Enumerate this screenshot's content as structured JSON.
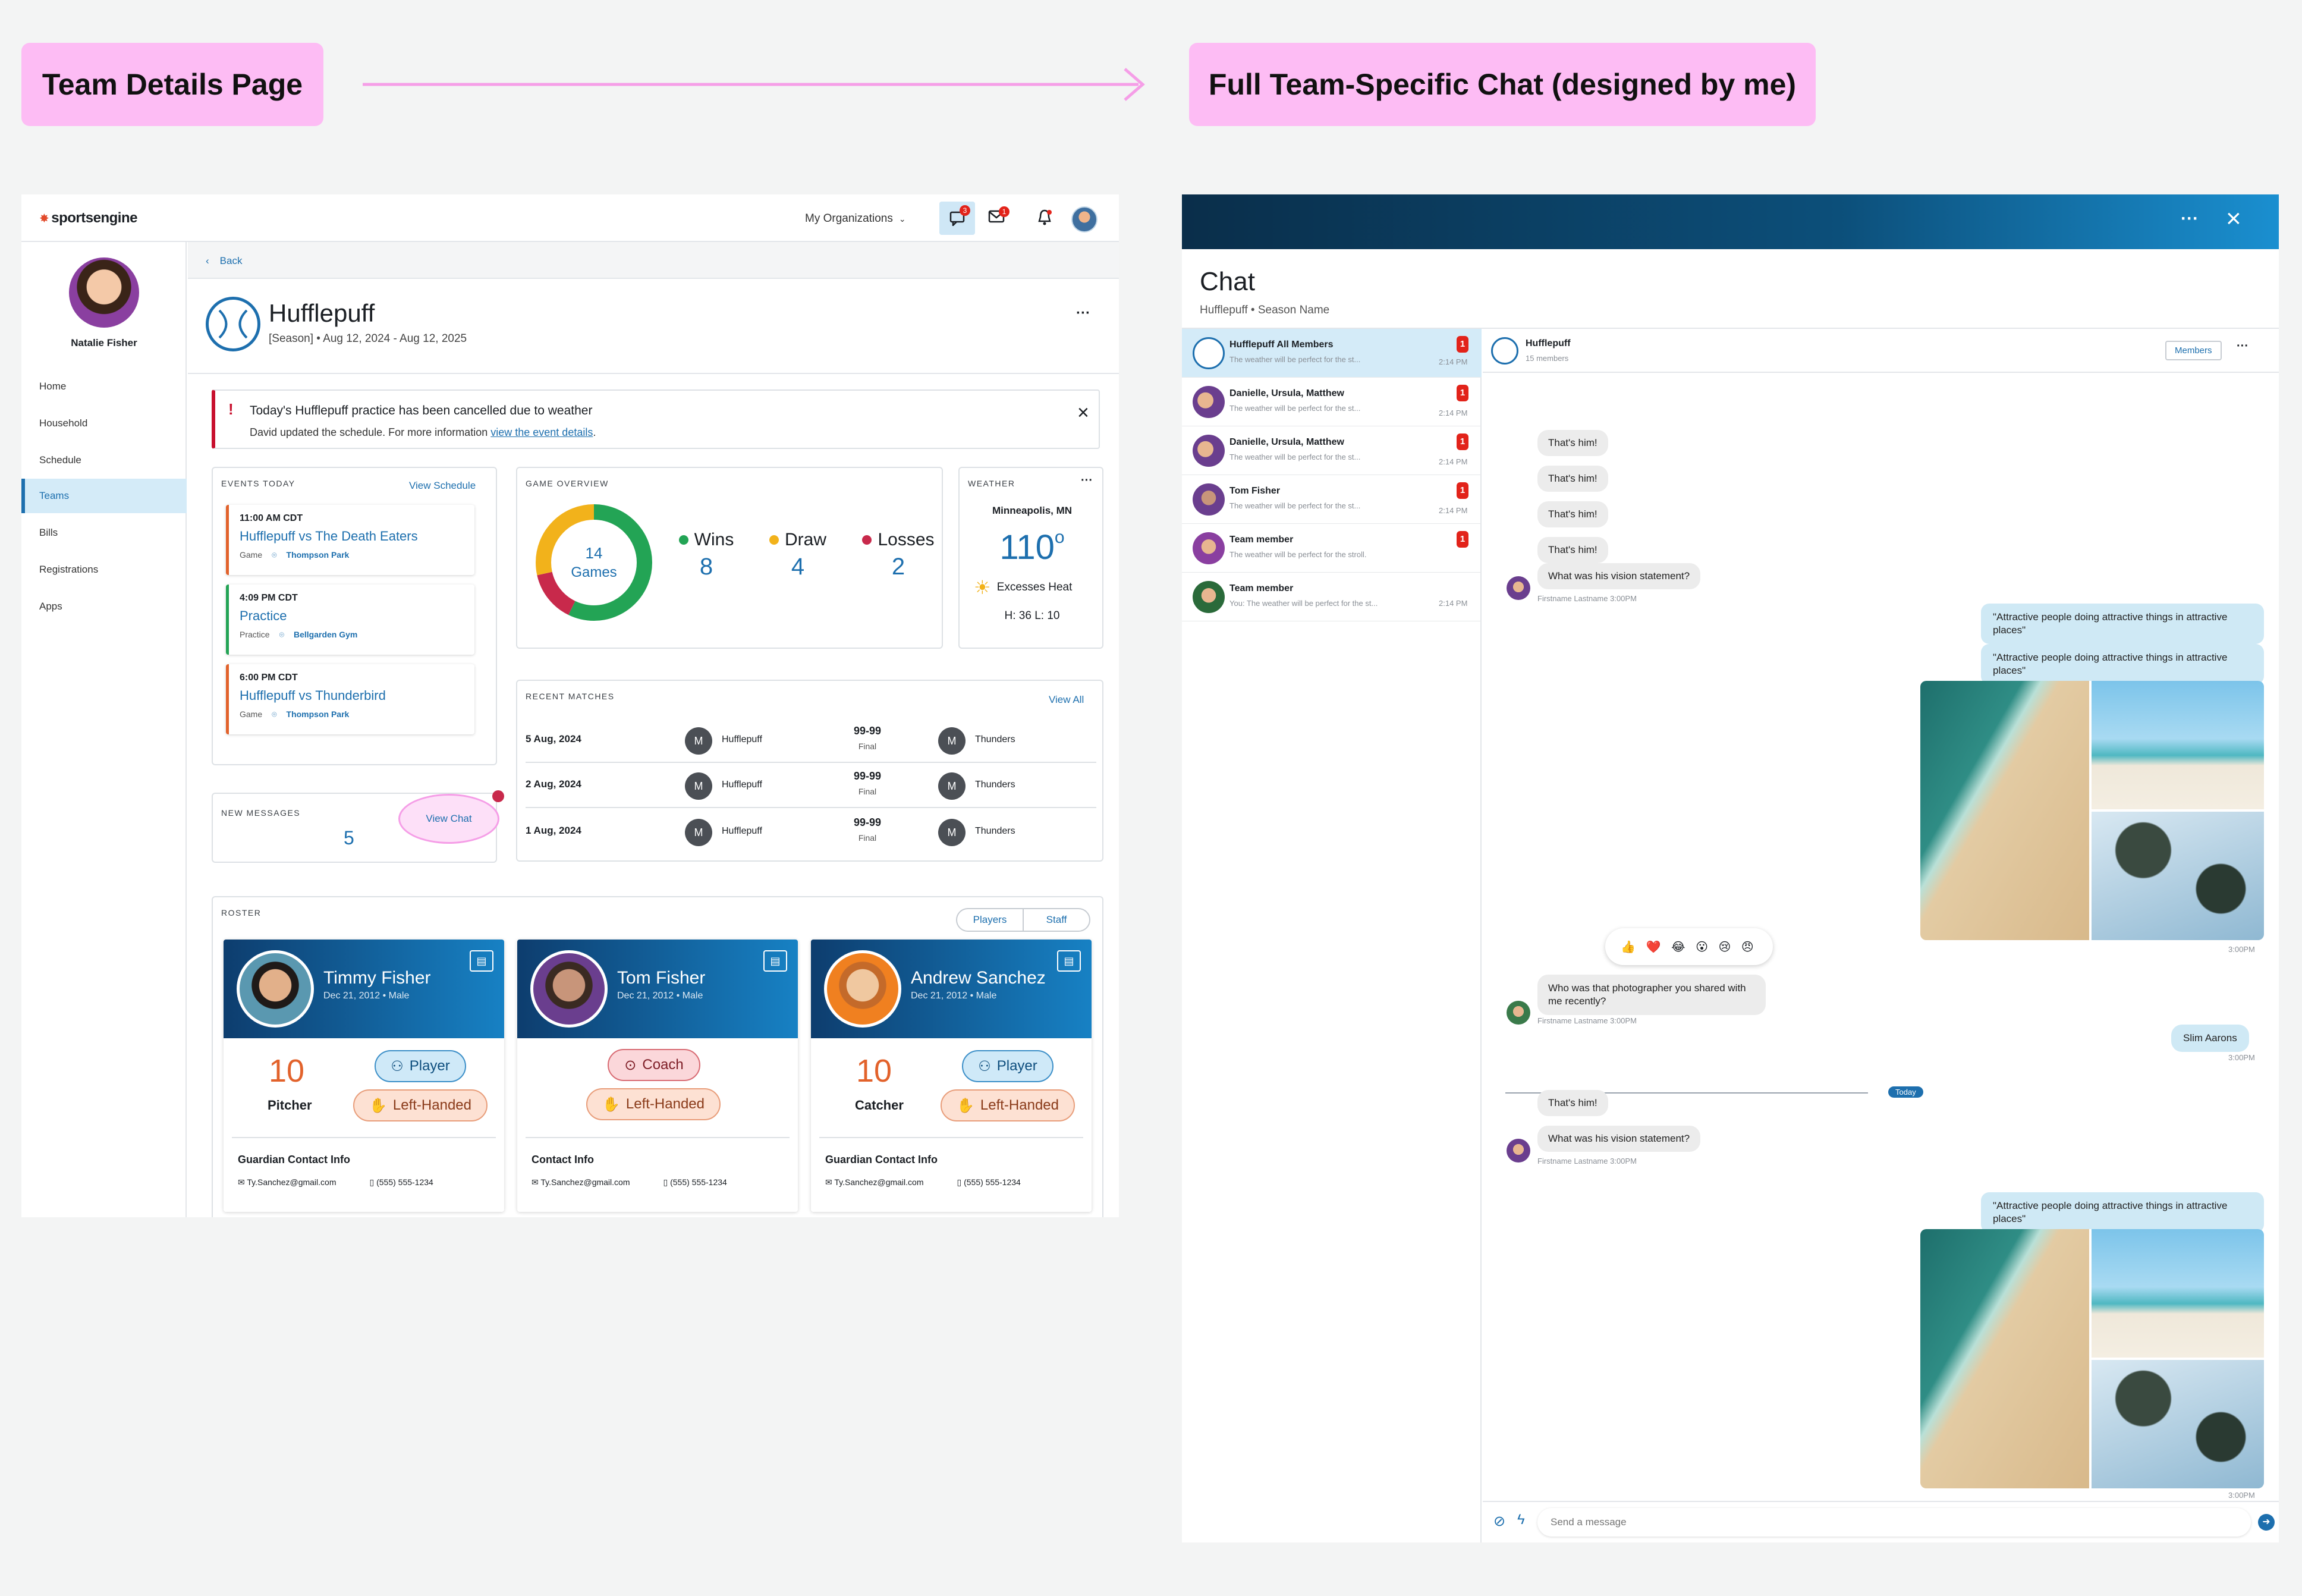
{
  "annotations": {
    "left_tag": "Team Details Page",
    "right_tag": "Full Team-Specific Chat (designed by me)"
  },
  "colors": {
    "accent": "#1d6fae",
    "tag_bg": "#fdbcf4",
    "alert": "#c8102e"
  },
  "topbar": {
    "logo": "sportsengine",
    "org_menu": "My Organizations",
    "chat_badge": "3",
    "mail_badge": "1"
  },
  "sidebar": {
    "user_name": "Natalie Fisher",
    "items": [
      {
        "label": "Home"
      },
      {
        "label": "Household"
      },
      {
        "label": "Schedule"
      },
      {
        "label": "Teams"
      },
      {
        "label": "Bills"
      },
      {
        "label": "Registrations"
      },
      {
        "label": "Apps"
      }
    ]
  },
  "team": {
    "back": "Back",
    "name": "Hufflepuff",
    "season": "[Season] •  Aug 12, 2024 - Aug 12, 2025",
    "more": "···"
  },
  "alert": {
    "icon": "!",
    "title": "Today's Hufflepuff practice has been cancelled due to weather",
    "body": "David updated the schedule. For more information ",
    "link": "view the event details",
    "period": ".",
    "close": "×"
  },
  "events": {
    "title": "EVENTS TODAY",
    "link": "View Schedule",
    "items": [
      {
        "time": "11:00 AM CDT",
        "name": "Hufflepuff vs The Death Eaters",
        "type": "Game",
        "place": "Thompson Park",
        "color": "#e2622b"
      },
      {
        "time": "4:09 PM CDT",
        "name": "Practice",
        "type": "Practice",
        "place": "Bellgarden Gym",
        "color": "#23a455"
      },
      {
        "time": "6:00 PM CDT",
        "name": "Hufflepuff vs Thunderbird",
        "type": "Game",
        "place": "Thompson Park",
        "color": "#e2622b"
      }
    ]
  },
  "overview": {
    "title": "GAME OVERVIEW",
    "total": "14",
    "total_label": "Games",
    "stats": [
      {
        "label": "Wins",
        "value": "8",
        "color": "#23a455"
      },
      {
        "label": "Draw",
        "value": "4",
        "color": "#f2b21b"
      },
      {
        "label": "Losses",
        "value": "2",
        "color": "#c8294b"
      }
    ]
  },
  "weather": {
    "title": "WEATHER",
    "more": "···",
    "city": "Minneapolis, MN",
    "temp": "110",
    "deg": "o",
    "condition": "Excesses Heat",
    "hilo": "H: 36   L: 10"
  },
  "matches": {
    "title": "RECENT MATCHES",
    "link": "View All",
    "rows": [
      {
        "date": "5 Aug, 2024",
        "home": "Hufflepuff",
        "score": "99-99",
        "status": "Final",
        "away": "Thunders"
      },
      {
        "date": "2 Aug, 2024",
        "home": "Hufflepuff",
        "score": "99-99",
        "status": "Final",
        "away": "Thunders"
      },
      {
        "date": "1 Aug, 2024",
        "home": "Hufflepuff",
        "score": "99-99",
        "status": "Final",
        "away": "Thunders"
      }
    ]
  },
  "messages": {
    "title": "NEW MESSAGES",
    "count": "5",
    "button": "View Chat"
  },
  "roster": {
    "title": "ROSTER",
    "toggle": [
      "Players",
      "Staff"
    ],
    "cards": [
      {
        "name": "Timmy Fisher",
        "meta": "Dec 21, 2012 • Male",
        "number": "10",
        "position": "Pitcher",
        "role": "Player",
        "hand": "Left-Handed",
        "contact_title": "Guardian Contact Info",
        "email": "Ty.Sanchez@gmail.com",
        "phone": "(555) 555-1234",
        "av_color": "#3a6b8c"
      },
      {
        "name": "Tom Fisher",
        "meta": "Dec 21, 2012 • Male",
        "number": "",
        "position": "",
        "role": "Coach",
        "hand": "Left-Handed",
        "contact_title": "Contact Info",
        "email": "Ty.Sanchez@gmail.com",
        "phone": "(555) 555-1234",
        "av_color": "#6b4a3a"
      },
      {
        "name": "Andrew Sanchez",
        "meta": "Dec 21, 2012 • Male",
        "number": "10",
        "position": "Catcher",
        "role": "Player",
        "hand": "Left-Handed",
        "contact_title": "Guardian Contact Info",
        "email": "Ty.Sanchez@gmail.com",
        "phone": "(555) 555-1234",
        "av_color": "#e8801f"
      }
    ]
  },
  "chat": {
    "more": "···",
    "close": "×",
    "title": "Chat",
    "subtitle": "Hufflepuff • Season Name",
    "threads": [
      {
        "name": "Hufflepuff All Members",
        "preview": "The weather will be perfect for the st...",
        "time": "2:14 PM",
        "badge": "1"
      },
      {
        "name": "Danielle, Ursula, Matthew",
        "preview": "The weather will be perfect for the st...",
        "time": "2:14 PM",
        "badge": "1"
      },
      {
        "name": "Danielle, Ursula, Matthew",
        "preview": "The weather will be perfect for the st...",
        "time": "2:14 PM",
        "badge": "1"
      },
      {
        "name": "Tom Fisher",
        "preview": "The weather will be perfect for the st...",
        "time": "2:14 PM",
        "badge": "1"
      },
      {
        "name": "Team member",
        "preview": "The weather will be perfect for the stroll.",
        "time": "",
        "badge": "1"
      },
      {
        "name": "Team member",
        "preview": "You: The weather will be perfect for the st...",
        "time": "2:14 PM",
        "badge": ""
      }
    ],
    "conv_title": "Hufflepuff",
    "conv_members": "15 members",
    "members_button": "Members",
    "msgs": {
      "thats_him": "That's him!",
      "vision": "What was his vision statement?",
      "sender": "Firstname Lastname 3:00PM",
      "quote": "\"Attractive people doing attractive things in attractive places\"",
      "photographer": "Who was that photographer you shared with me recently?",
      "slim": "Slim Aarons",
      "time": "3:00PM",
      "today": "Today",
      "reactions": "👍 ❤️ 😂 😮 😢 😠"
    },
    "input_placeholder": "Send a message"
  }
}
